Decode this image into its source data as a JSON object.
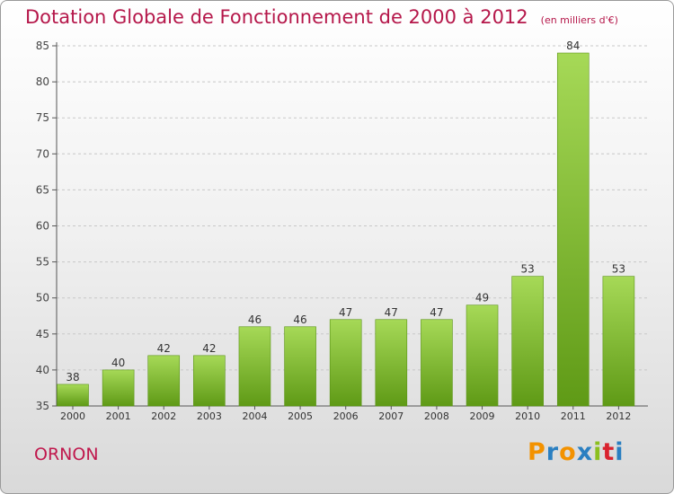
{
  "chart_data": {
    "type": "bar",
    "title": "Dotation Globale de Fonctionnement de 2000 à 2012",
    "subtitle": "(en milliers d'€)",
    "categories": [
      "2000",
      "2001",
      "2002",
      "2003",
      "2004",
      "2005",
      "2006",
      "2007",
      "2008",
      "2009",
      "2010",
      "2011",
      "2012"
    ],
    "values": [
      38,
      40,
      42,
      42,
      46,
      46,
      47,
      47,
      47,
      49,
      53,
      84,
      53
    ],
    "ylim": [
      35,
      85
    ],
    "yticks": [
      35,
      40,
      45,
      50,
      55,
      60,
      65,
      70,
      75,
      80,
      85
    ],
    "grid": "horizontal-dashed",
    "legend": "none",
    "colors": {
      "bar": "#7fbf2a",
      "bar_light": "#a6d957",
      "bar_dark": "#5f9a16",
      "title": "#b5174a"
    }
  },
  "footer": {
    "place": "ORNON",
    "logo": [
      "P",
      "r",
      "o",
      "x",
      "i",
      "t",
      "i"
    ],
    "logo_colors": [
      "#f39200",
      "#2a7fc1",
      "#f39200",
      "#2a7fc1",
      "#8bbf1f",
      "#d9232e",
      "#2a7fc1"
    ]
  }
}
